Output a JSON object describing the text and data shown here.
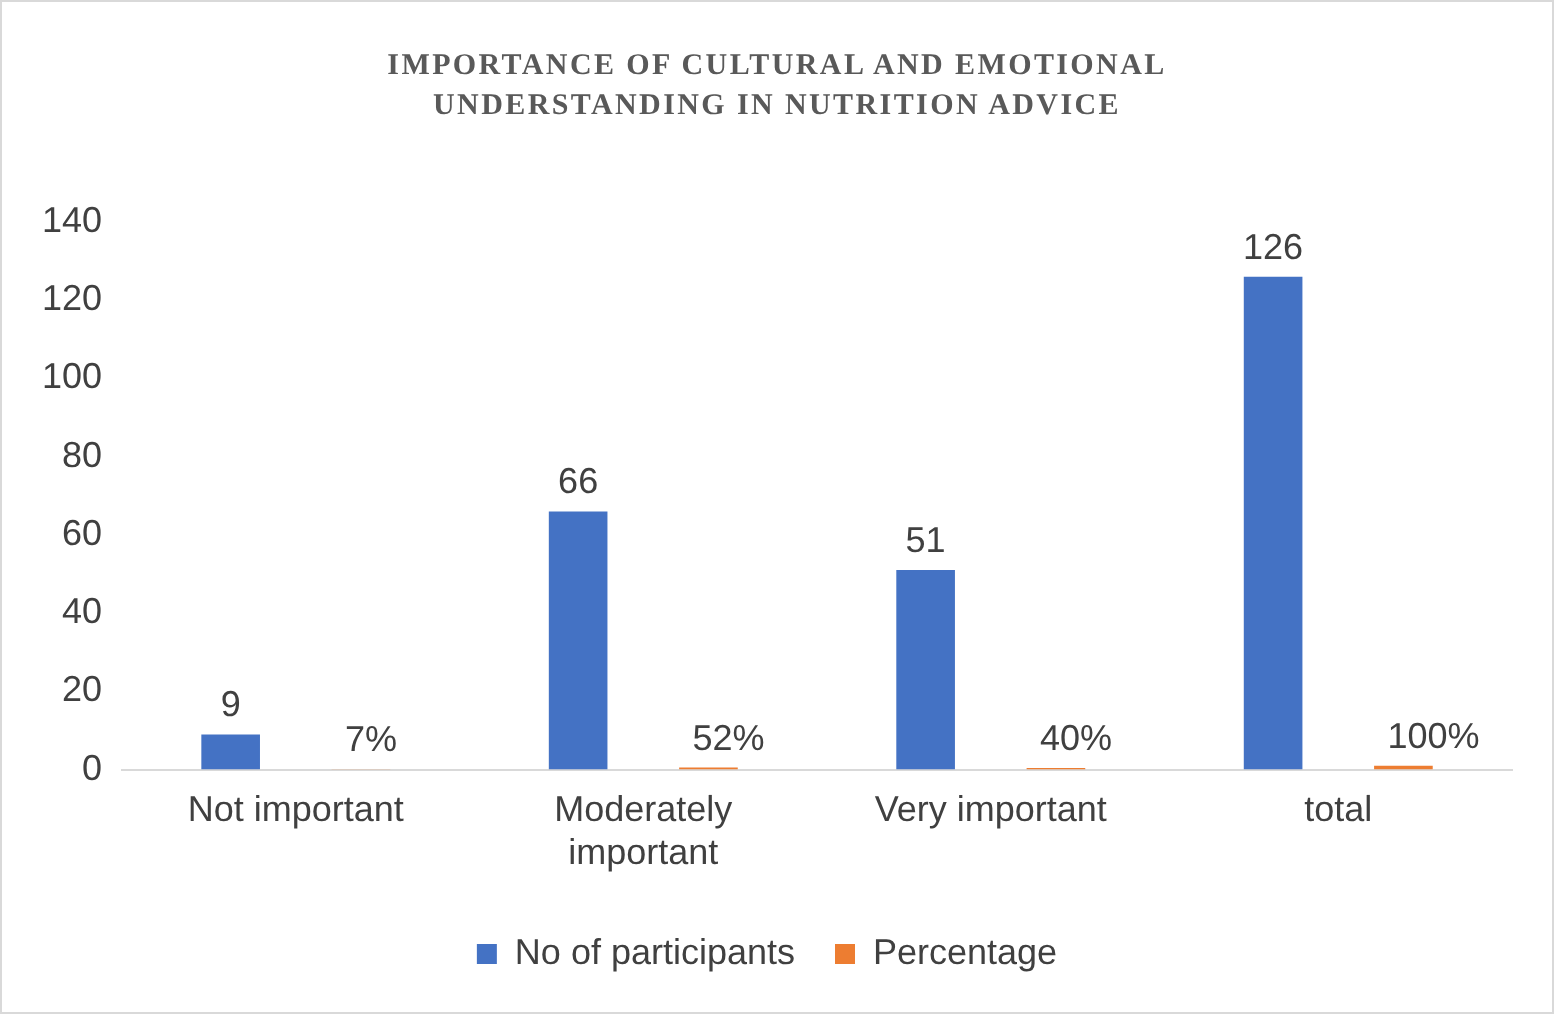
{
  "chart_data": {
    "type": "bar",
    "title": "IMPORTANCE OF CULTURAL AND EMOTIONAL UNDERSTANDING IN NUTRITION ADVICE",
    "categories": [
      "Not important",
      "Moderately important",
      "Very important",
      "total"
    ],
    "series": [
      {
        "name": "No of participants",
        "color": "#4472c4",
        "values": [
          9,
          66,
          51,
          126
        ],
        "value_labels": [
          "9",
          "66",
          "51",
          "126"
        ]
      },
      {
        "name": "Percentage",
        "color": "#ed7d31",
        "values": [
          0.07,
          0.52,
          0.4,
          1
        ],
        "value_labels": [
          "7%",
          "52%",
          "40%",
          "100%"
        ]
      }
    ],
    "ylim": [
      0,
      140
    ],
    "yticks": [
      0,
      20,
      40,
      60,
      80,
      100,
      120,
      140
    ],
    "grid": false,
    "legend": "bottom"
  }
}
